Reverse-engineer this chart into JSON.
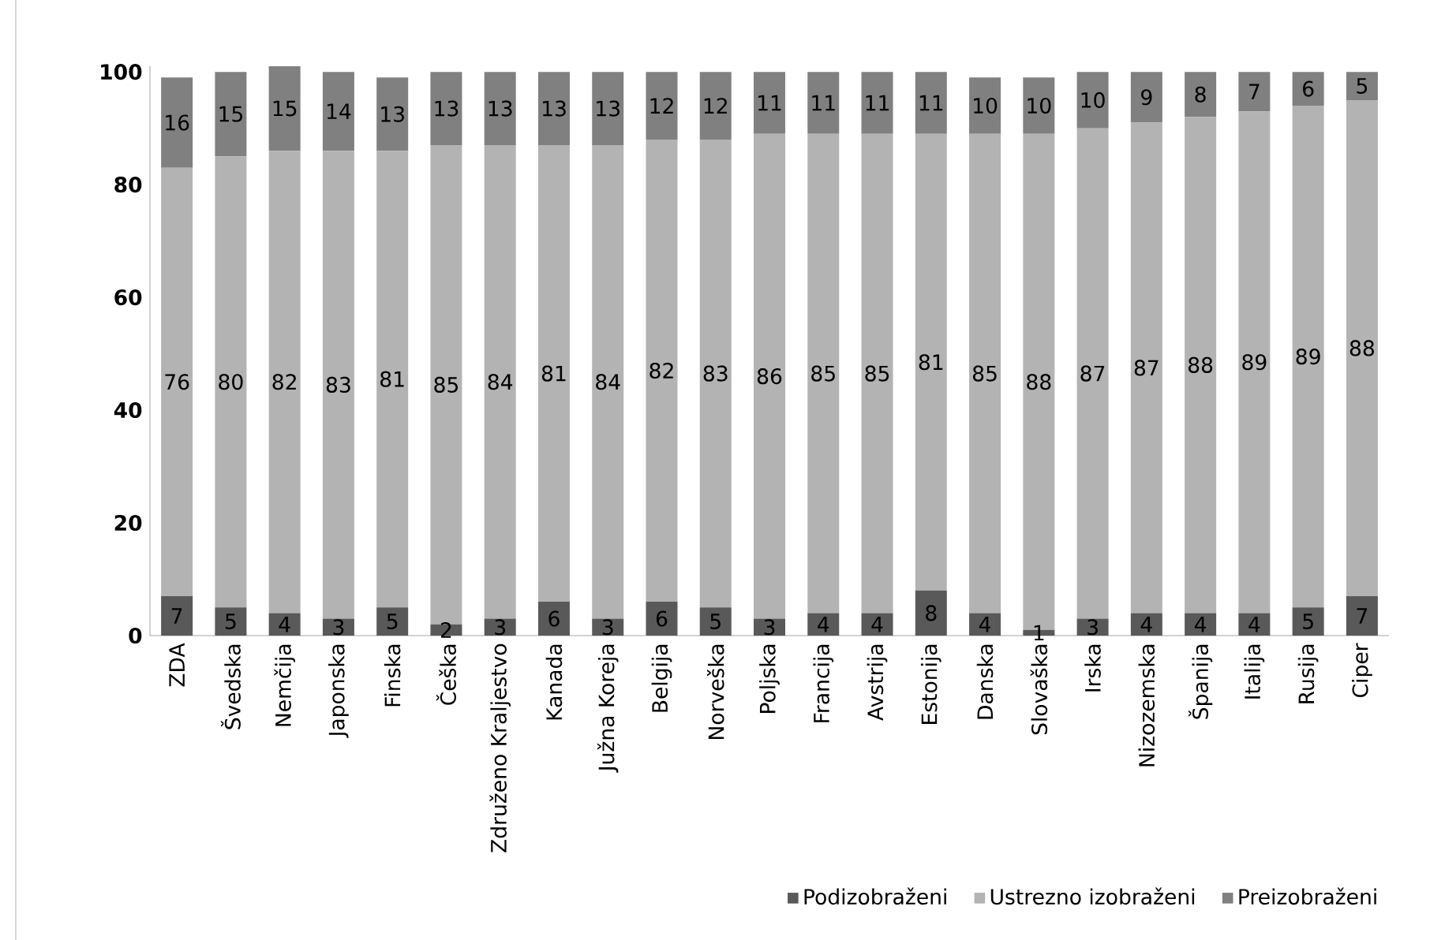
{
  "chart_data": {
    "type": "bar",
    "stacked": true,
    "categories": [
      "ZDA",
      "Švedska",
      "Nemčija",
      "Japonska",
      "Finska",
      "Češka",
      "Združeno Kraljestvo",
      "Kanada",
      "Južna Koreja",
      "Belgija",
      "Norveška",
      "Poljska",
      "Francija",
      "Avstrija",
      "Estonija",
      "Danska",
      "Slovaška",
      "Irska",
      "Nizozemska",
      "Španija",
      "Italija",
      "Rusija",
      "Ciper"
    ],
    "series": [
      {
        "name": "Podizobraženi",
        "color": "#595959",
        "values": [
          7,
          5,
          4,
          3,
          5,
          2,
          3,
          6,
          3,
          6,
          5,
          3,
          4,
          4,
          8,
          4,
          1,
          3,
          4,
          4,
          4,
          5,
          7
        ]
      },
      {
        "name": "Ustrezno izobraženi",
        "color": "#b3b3b3",
        "values": [
          76,
          80,
          82,
          83,
          81,
          85,
          84,
          81,
          84,
          82,
          83,
          86,
          85,
          85,
          81,
          85,
          88,
          87,
          87,
          88,
          89,
          89,
          88
        ]
      },
      {
        "name": "Preizobraženi",
        "color": "#808080",
        "values": [
          16,
          15,
          15,
          14,
          13,
          13,
          13,
          13,
          13,
          12,
          12,
          11,
          11,
          11,
          11,
          10,
          10,
          10,
          9,
          8,
          7,
          6,
          5
        ]
      }
    ],
    "ylim": [
      0,
      101
    ],
    "yticks": [
      0,
      20,
      40,
      60,
      80,
      100
    ],
    "grid": false,
    "legend": "bottom right",
    "data_labels": true
  }
}
